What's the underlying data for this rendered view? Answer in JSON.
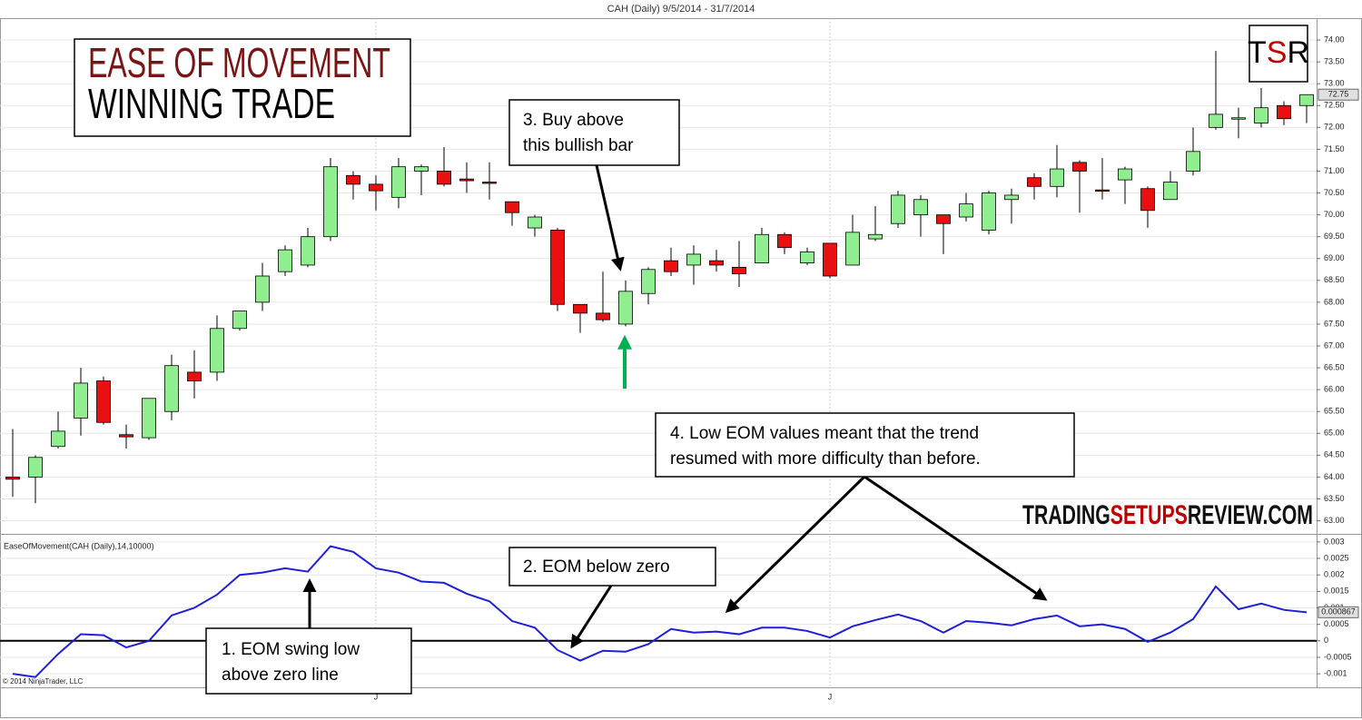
{
  "chart_data": [
    {
      "type": "candlestick",
      "title": "CAH (Daily)  9/5/2014 - 31/7/2014",
      "open": [
        64.0,
        64.0,
        64.7,
        65.35,
        66.2,
        64.97,
        64.9,
        65.5,
        66.4,
        66.4,
        67.4,
        68.0,
        68.7,
        68.85,
        69.5,
        70.9,
        70.7,
        70.4,
        71.0,
        71.0,
        70.82,
        70.75,
        70.3,
        69.7,
        69.65,
        67.95,
        67.75,
        67.5,
        68.2,
        68.95,
        68.85,
        68.95,
        68.8,
        68.9,
        69.55,
        68.9,
        69.35,
        68.85,
        69.45,
        69.8,
        70.0,
        70.0,
        69.95,
        69.65,
        70.35,
        70.85,
        70.65,
        71.2,
        70.57,
        70.8,
        70.6,
        70.35,
        71.0,
        72.0,
        72.2,
        72.1,
        72.5,
        72.5
      ],
      "high": [
        65.1,
        64.5,
        65.5,
        66.5,
        66.3,
        65.2,
        65.8,
        66.8,
        66.9,
        67.7,
        67.8,
        68.9,
        69.3,
        69.7,
        71.3,
        71.0,
        70.9,
        71.3,
        71.15,
        71.55,
        71.2,
        71.2,
        70.3,
        70.0,
        69.7,
        67.95,
        68.7,
        68.5,
        68.8,
        69.25,
        69.3,
        69.2,
        69.4,
        69.7,
        69.6,
        69.25,
        69.35,
        70.0,
        70.2,
        70.55,
        70.45,
        70.0,
        70.5,
        70.55,
        70.6,
        70.95,
        71.6,
        71.25,
        71.3,
        71.1,
        70.65,
        71.0,
        72.0,
        73.75,
        72.45,
        72.9,
        72.6,
        72.75
      ],
      "low": [
        63.55,
        63.4,
        64.65,
        64.95,
        65.2,
        64.65,
        64.85,
        65.3,
        65.8,
        66.2,
        67.35,
        67.8,
        68.6,
        68.8,
        69.4,
        70.35,
        70.1,
        70.15,
        70.45,
        70.65,
        70.5,
        70.35,
        69.75,
        69.5,
        67.8,
        67.3,
        67.55,
        67.45,
        67.95,
        68.6,
        68.4,
        68.7,
        68.35,
        68.9,
        69.1,
        68.85,
        68.55,
        68.85,
        69.4,
        69.7,
        69.5,
        69.1,
        69.85,
        69.55,
        69.8,
        70.35,
        70.4,
        70.05,
        70.35,
        70.25,
        69.7,
        70.35,
        70.9,
        71.95,
        71.75,
        72.0,
        72.05,
        72.1
      ],
      "close": [
        63.95,
        64.45,
        65.05,
        66.15,
        65.25,
        64.92,
        65.8,
        66.55,
        66.2,
        67.4,
        67.8,
        68.6,
        69.2,
        69.5,
        71.1,
        70.7,
        70.55,
        71.1,
        71.1,
        70.7,
        70.78,
        70.72,
        70.05,
        69.95,
        67.95,
        67.75,
        67.6,
        68.25,
        68.75,
        68.7,
        69.1,
        68.85,
        68.65,
        69.55,
        69.25,
        69.15,
        68.6,
        69.6,
        69.55,
        70.45,
        70.35,
        69.8,
        70.25,
        70.5,
        70.45,
        70.65,
        71.05,
        71.0,
        70.55,
        71.05,
        70.1,
        70.75,
        71.45,
        72.3,
        72.22,
        72.45,
        72.2,
        72.75
      ],
      "up_color": "#90ee90",
      "down_color": "#e81010",
      "ylim": [
        62.7,
        74.5
      ],
      "yticks": [
        {
          "value": 63,
          "label": "63.00"
        },
        {
          "value": 63.5,
          "label": "63.50"
        },
        {
          "value": 64,
          "label": "64.00"
        },
        {
          "value": 64.5,
          "label": "64.50"
        },
        {
          "value": 65,
          "label": "65.00"
        },
        {
          "value": 65.5,
          "label": "65.50"
        },
        {
          "value": 66,
          "label": "66.00"
        },
        {
          "value": 66.5,
          "label": "66.50"
        },
        {
          "value": 67,
          "label": "67.00"
        },
        {
          "value": 67.5,
          "label": "67.50"
        },
        {
          "value": 68,
          "label": "68.00"
        },
        {
          "value": 68.5,
          "label": "68.50"
        },
        {
          "value": 69,
          "label": "69.00"
        },
        {
          "value": 69.5,
          "label": "69.50"
        },
        {
          "value": 70,
          "label": "70.00"
        },
        {
          "value": 70.5,
          "label": "70.50"
        },
        {
          "value": 71,
          "label": "71.00"
        },
        {
          "value": 71.5,
          "label": "71.50"
        },
        {
          "value": 72,
          "label": "72.00"
        },
        {
          "value": 72.5,
          "label": "72.50"
        },
        {
          "value": 73,
          "label": "73.00"
        },
        {
          "value": 73.5,
          "label": "73.50"
        },
        {
          "value": 74,
          "label": "74.00"
        }
      ],
      "grid": true
    },
    {
      "type": "line",
      "title": "EaseOfMovement(CAH (Daily),14,10000)",
      "categories": [
        null,
        null,
        null,
        null,
        null,
        null,
        null,
        null,
        null,
        null,
        null,
        null,
        null,
        null,
        null,
        null,
        "J",
        null,
        null,
        null,
        null,
        null,
        null,
        null,
        null,
        null,
        null,
        null,
        null,
        null,
        null,
        null,
        null,
        null,
        null,
        null,
        "J",
        null,
        null,
        null,
        null,
        null,
        null,
        null,
        null,
        null,
        null,
        null,
        null,
        null,
        null,
        null,
        null,
        null,
        null,
        null,
        null,
        null
      ],
      "series": [
        {
          "name": "EaseOfMovement",
          "color": "#1f1fd8",
          "values": [
            -0.001,
            -0.0011,
            -0.0004,
            0.0002,
            0.00017,
            -0.0002,
            0,
            0.00077,
            0.001,
            0.0014,
            0.002,
            0.00207,
            0.0022,
            0.0021,
            0.00287,
            0.0027,
            0.0022,
            0.00207,
            0.0018,
            0.00176,
            0.00143,
            0.0012,
            0.0006,
            0.0004,
            -0.00028,
            -0.0006,
            -0.0003,
            -0.00033,
            -0.0001,
            0.00036,
            0.00025,
            0.00028,
            0.0002,
            0.0004,
            0.0004,
            0.0003,
            0.0001,
            0.00044,
            0.00063,
            0.0008,
            0.0006,
            0.00025,
            0.0006,
            0.00055,
            0.00047,
            0.00066,
            0.00077,
            0.00044,
            0.0005,
            0.00036,
            -3e-05,
            0.00025,
            0.00066,
            0.00165,
            0.00096,
            0.00113,
            0.00094,
            0.000867
          ]
        }
      ],
      "hline": 0,
      "ylim": [
        -0.00141,
        0.00319
      ],
      "yticks": [
        0.003,
        0.0025,
        0.002,
        0.0015,
        0.001,
        0.0005,
        0,
        -0.0005,
        -0.001
      ],
      "grid": true
    }
  ],
  "credit": "© 2014 NinjaTrader, LLC",
  "headline": {
    "line1": "EASE OF MOVEMENT",
    "line2": "WINNING TRADE"
  },
  "logo": [
    "T",
    "S",
    "R"
  ],
  "watermark": [
    "TRADING",
    "SETUPS",
    "REVIEW.COM"
  ],
  "annotations": [
    {
      "lines": [
        "3. Buy above",
        "this bullish  bar"
      ]
    },
    {
      "lines": [
        "4. Low EOM values meant that the trend",
        "resumed with more difficulty than before."
      ]
    },
    {
      "lines": [
        "2. EOM below zero"
      ]
    },
    {
      "lines": [
        "1. EOM swing low",
        "above zero line"
      ]
    }
  ]
}
